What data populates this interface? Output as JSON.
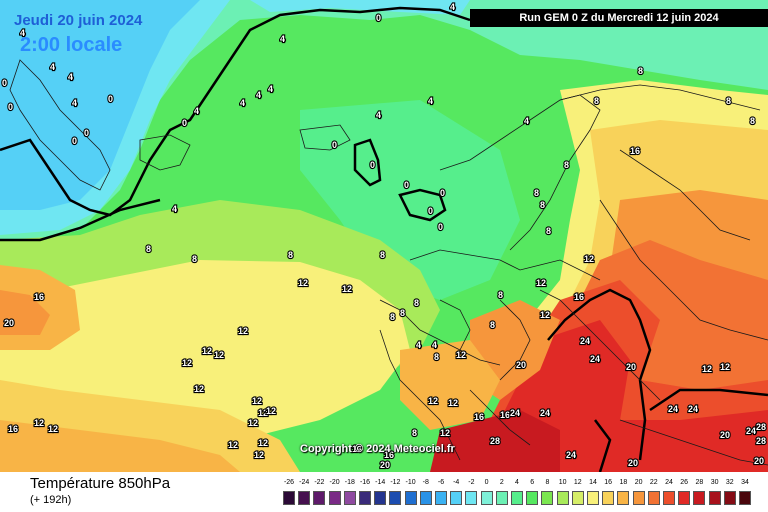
{
  "header": {
    "date_title": "Jeudi 20 juin 2024",
    "time_title": "2:00 locale",
    "run_info": "Run GEM 0 Z du Mercredi 12 juin 2024"
  },
  "copyright": "Copyright © 2024 Meteociel.fr",
  "footer": {
    "parameter_title": "Température 850hPa",
    "lead_time": "(+ 192h)"
  },
  "scale": {
    "values": [
      "-26",
      "-24",
      "-22",
      "-20",
      "-18",
      "-16",
      "-14",
      "-12",
      "-10",
      "-8",
      "-6",
      "-4",
      "-2",
      "0",
      "2",
      "4",
      "6",
      "8",
      "10",
      "12",
      "14",
      "16",
      "18",
      "20",
      "22",
      "24",
      "26",
      "28",
      "30",
      "32",
      "34"
    ],
    "colors": [
      "#2b0a36",
      "#46104f",
      "#5e1a6a",
      "#7a2a86",
      "#8f4aa0",
      "#3a2b7a",
      "#24358f",
      "#1c4db0",
      "#1f6fd0",
      "#2a92e6",
      "#3bb2f2",
      "#55d0f6",
      "#6fe6f2",
      "#7ef0d8",
      "#6cf0b4",
      "#56ee8c",
      "#56e860",
      "#7be650",
      "#a8ea5a",
      "#d6ee68",
      "#f8f07a",
      "#f8d25a",
      "#f8b446",
      "#f6963c",
      "#f27234",
      "#ec4e2c",
      "#e02a26",
      "#c81a20",
      "#a8121c",
      "#840c16",
      "#4a060c"
    ]
  },
  "map_labels": [
    "0",
    "4",
    "8",
    "12",
    "16",
    "20",
    "24",
    "28"
  ],
  "legend": {
    "cold_color": "#6fe6f2",
    "cool_color": "#56ee8c",
    "mild_color": "#f8f07a",
    "warm_color": "#f27234",
    "hot_color": "#e02a26"
  }
}
